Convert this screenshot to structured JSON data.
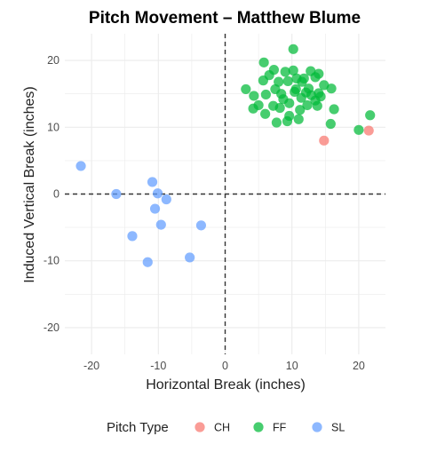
{
  "chart_data": {
    "type": "scatter",
    "title": "Pitch Movement – Matthew Blume",
    "xlabel": "Horizontal Break (inches)",
    "ylabel": "Induced Vertical Break (inches)",
    "xlim": [
      -24,
      24
    ],
    "ylim": [
      -24,
      24
    ],
    "xticks": [
      -20,
      -10,
      0,
      10,
      20
    ],
    "yticks": [
      -20,
      -10,
      0,
      10,
      20
    ],
    "reference_lines": {
      "x": 0,
      "y": 0,
      "style": "dashed"
    },
    "grid": true,
    "legend": {
      "title": "Pitch Type",
      "position": "bottom"
    },
    "series": [
      {
        "name": "CH",
        "color": "#F8766D",
        "points": [
          [
            14.8,
            8.0
          ],
          [
            21.5,
            9.5
          ]
        ]
      },
      {
        "name": "FF",
        "color": "#00BA38",
        "points": [
          [
            10.2,
            21.7
          ],
          [
            5.8,
            19.7
          ],
          [
            7.3,
            18.6
          ],
          [
            12.8,
            18.4
          ],
          [
            6.6,
            17.8
          ],
          [
            9.0,
            18.3
          ],
          [
            14.0,
            18.0
          ],
          [
            10.2,
            18.5
          ],
          [
            13.5,
            17.5
          ],
          [
            11.8,
            17.3
          ],
          [
            5.7,
            17.0
          ],
          [
            9.4,
            16.9
          ],
          [
            11.5,
            16.8
          ],
          [
            14.8,
            16.3
          ],
          [
            3.1,
            15.7
          ],
          [
            7.5,
            15.7
          ],
          [
            10.6,
            15.7
          ],
          [
            12.5,
            15.8
          ],
          [
            15.9,
            15.8
          ],
          [
            4.3,
            14.7
          ],
          [
            6.1,
            14.9
          ],
          [
            8.4,
            15.0
          ],
          [
            10.4,
            15.3
          ],
          [
            12.9,
            14.8
          ],
          [
            14.3,
            14.6
          ],
          [
            8.7,
            14.2
          ],
          [
            11.4,
            14.4
          ],
          [
            13.5,
            14.0
          ],
          [
            5.0,
            13.3
          ],
          [
            7.2,
            13.2
          ],
          [
            9.6,
            13.6
          ],
          [
            12.3,
            13.3
          ],
          [
            13.8,
            13.2
          ],
          [
            4.2,
            12.8
          ],
          [
            8.2,
            12.9
          ],
          [
            11.2,
            12.6
          ],
          [
            16.3,
            12.7
          ],
          [
            6.0,
            12.0
          ],
          [
            9.6,
            11.7
          ],
          [
            11.0,
            11.2
          ],
          [
            7.7,
            10.7
          ],
          [
            9.3,
            10.9
          ],
          [
            15.8,
            10.5
          ],
          [
            20.0,
            9.6
          ],
          [
            21.7,
            11.8
          ],
          [
            10.7,
            17.3
          ],
          [
            8.0,
            16.8
          ],
          [
            12.1,
            15.2
          ],
          [
            14.0,
            15.1
          ]
        ]
      },
      {
        "name": "SL",
        "color": "#619CFF",
        "points": [
          [
            -21.6,
            4.2
          ],
          [
            -16.3,
            0.0
          ],
          [
            -10.9,
            1.8
          ],
          [
            -10.1,
            0.1
          ],
          [
            -8.8,
            -0.8
          ],
          [
            -10.5,
            -2.2
          ],
          [
            -9.6,
            -4.6
          ],
          [
            -3.6,
            -4.7
          ],
          [
            -13.9,
            -6.3
          ],
          [
            -11.6,
            -10.2
          ],
          [
            -5.3,
            -9.5
          ]
        ]
      }
    ]
  }
}
